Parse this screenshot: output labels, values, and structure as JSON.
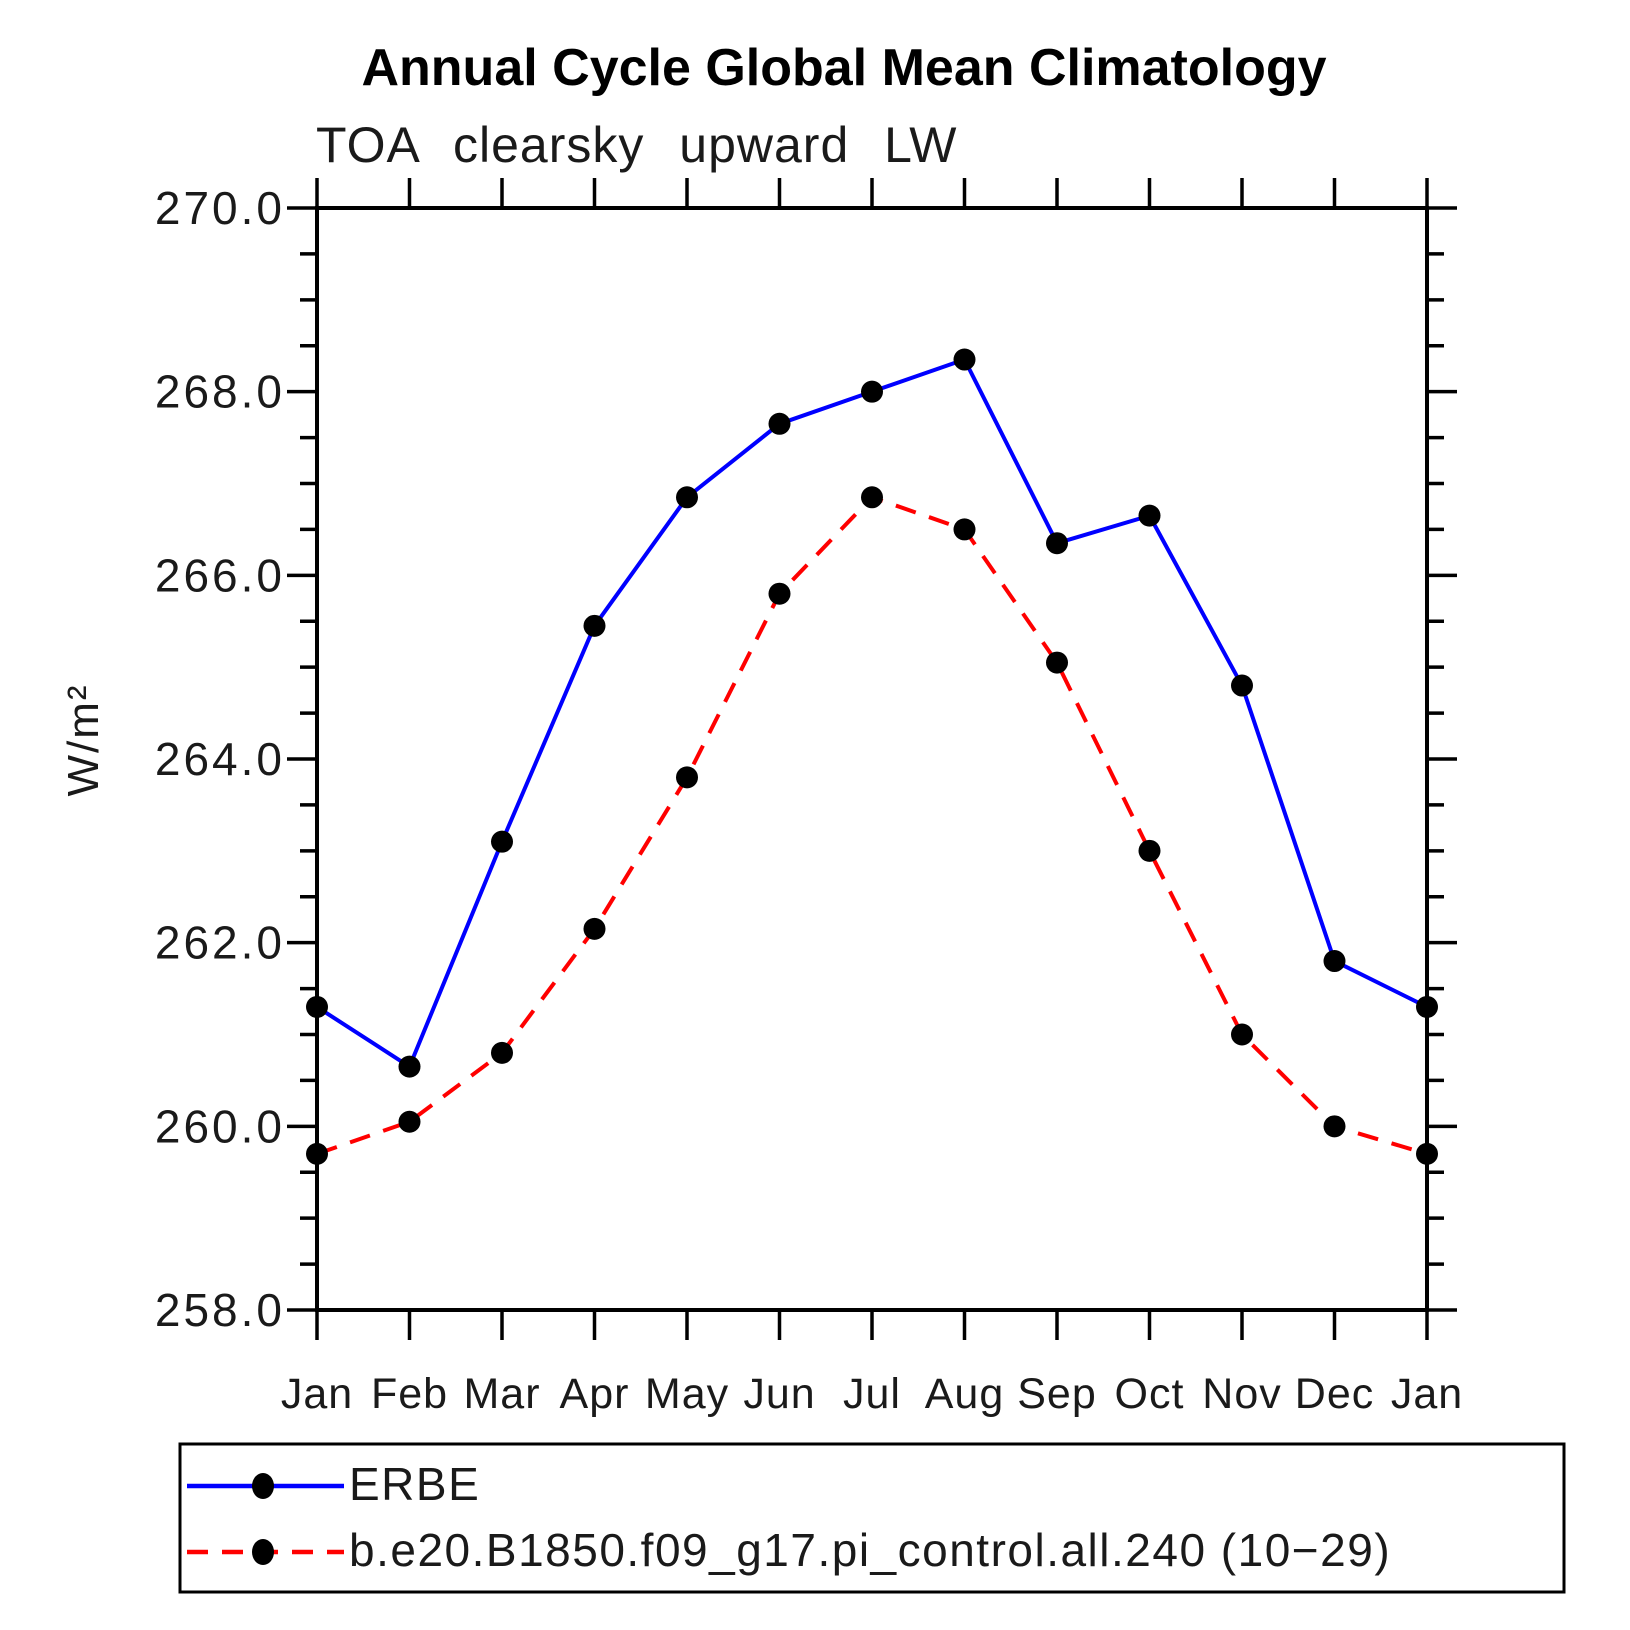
{
  "title": "Annual Cycle Global Mean Climatology",
  "subtitle": "TOA clearsky upward LW",
  "chart_data": {
    "type": "line",
    "categories": [
      "Jan",
      "Feb",
      "Mar",
      "Apr",
      "May",
      "Jun",
      "Jul",
      "Aug",
      "Sep",
      "Oct",
      "Nov",
      "Dec",
      "Jan"
    ],
    "ylabel": "W/m²",
    "ylim": [
      258.0,
      270.0
    ],
    "ytick_major_step": 2.0,
    "ytick_minor_step": 0.5,
    "ytick_labels": [
      "258.0",
      "260.0",
      "262.0",
      "264.0",
      "266.0",
      "268.0",
      "270.0"
    ],
    "grid": false,
    "legend_position": "bottom-left",
    "series": [
      {
        "name": "ERBE",
        "color": "#0000ff",
        "line_style": "solid",
        "marker": "filled-circle",
        "marker_color": "#000000",
        "values": [
          261.3,
          260.65,
          263.1,
          265.45,
          266.85,
          267.65,
          268.0,
          268.35,
          266.35,
          266.65,
          264.8,
          261.8,
          261.3
        ]
      },
      {
        "name": "b.e20.B1850.f09_g17.pi_control.all.240 (10−29)",
        "color": "#ff0000",
        "line_style": "dashed",
        "marker": "filled-circle",
        "marker_color": "#000000",
        "values": [
          259.7,
          260.05,
          260.8,
          262.15,
          263.8,
          265.8,
          266.85,
          266.5,
          265.05,
          263.0,
          261.0,
          260.0,
          259.7
        ]
      }
    ]
  },
  "colors": {
    "axis": "#000000",
    "background": "#ffffff",
    "series1": "#0000ff",
    "series2": "#ff0000",
    "marker": "#000000"
  }
}
